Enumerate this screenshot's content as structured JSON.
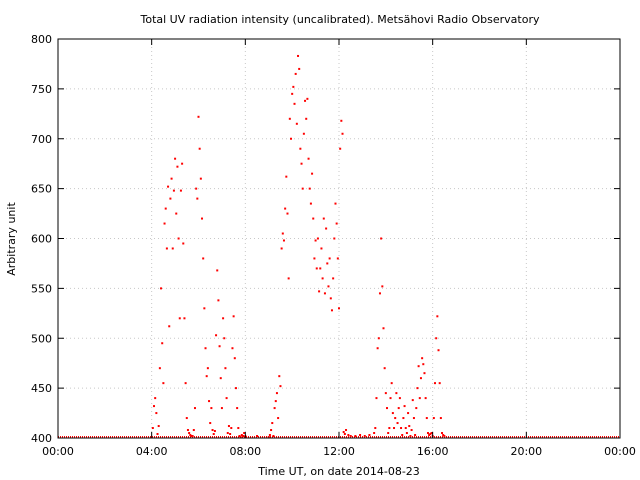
{
  "chart_data": {
    "type": "scatter",
    "title": "Total UV radiation intensity (uncalibrated). Metsähovi Radio Observatory",
    "xlabel": "Time UT, on date 2014-08-23",
    "ylabel": "Arbitrary unit",
    "xlim": [
      0,
      24
    ],
    "ylim": [
      400,
      800
    ],
    "x_ticks": [
      {
        "value": 0,
        "label": "00:00"
      },
      {
        "value": 4,
        "label": "04:00"
      },
      {
        "value": 8,
        "label": "08:00"
      },
      {
        "value": 12,
        "label": "12:00"
      },
      {
        "value": 16,
        "label": "16:00"
      },
      {
        "value": 20,
        "label": "20:00"
      },
      {
        "value": 24,
        "label": "00:00"
      }
    ],
    "y_ticks": [
      {
        "value": 400,
        "label": "400"
      },
      {
        "value": 450,
        "label": "450"
      },
      {
        "value": 500,
        "label": "500"
      },
      {
        "value": 550,
        "label": "550"
      },
      {
        "value": 600,
        "label": "600"
      },
      {
        "value": 650,
        "label": "650"
      },
      {
        "value": 700,
        "label": "700"
      },
      {
        "value": 750,
        "label": "750"
      },
      {
        "value": 800,
        "label": "800"
      }
    ],
    "grid": true,
    "point_color": "#ff0000",
    "baseline": {
      "value": 401,
      "x_start": 0,
      "x_end": 24
    },
    "x_unit": "hours UT",
    "points": [
      [
        4.05,
        410
      ],
      [
        4.1,
        432
      ],
      [
        4.15,
        440
      ],
      [
        4.2,
        425
      ],
      [
        4.25,
        404
      ],
      [
        4.3,
        412
      ],
      [
        4.35,
        470
      ],
      [
        4.4,
        550
      ],
      [
        4.45,
        495
      ],
      [
        4.5,
        455
      ],
      [
        4.55,
        615
      ],
      [
        4.6,
        630
      ],
      [
        4.65,
        590
      ],
      [
        4.7,
        652
      ],
      [
        4.75,
        512
      ],
      [
        4.8,
        640
      ],
      [
        4.85,
        660
      ],
      [
        4.9,
        590
      ],
      [
        4.95,
        648
      ],
      [
        5.0,
        680
      ],
      [
        5.05,
        625
      ],
      [
        5.1,
        672
      ],
      [
        5.15,
        600
      ],
      [
        5.2,
        520
      ],
      [
        5.25,
        648
      ],
      [
        5.3,
        675
      ],
      [
        5.35,
        595
      ],
      [
        5.4,
        520
      ],
      [
        5.45,
        455
      ],
      [
        5.5,
        420
      ],
      [
        5.55,
        408
      ],
      [
        5.6,
        405
      ],
      [
        5.65,
        403
      ],
      [
        5.7,
        402
      ],
      [
        5.75,
        402
      ],
      [
        5.8,
        408
      ],
      [
        5.85,
        430
      ],
      [
        5.9,
        650
      ],
      [
        5.95,
        640
      ],
      [
        6.0,
        722
      ],
      [
        6.05,
        690
      ],
      [
        6.1,
        660
      ],
      [
        6.15,
        620
      ],
      [
        6.2,
        580
      ],
      [
        6.25,
        530
      ],
      [
        6.3,
        490
      ],
      [
        6.35,
        462
      ],
      [
        6.4,
        470
      ],
      [
        6.45,
        437
      ],
      [
        6.5,
        415
      ],
      [
        6.55,
        430
      ],
      [
        6.6,
        408
      ],
      [
        6.65,
        404
      ],
      [
        6.7,
        407
      ],
      [
        6.75,
        503
      ],
      [
        6.8,
        568
      ],
      [
        6.85,
        538
      ],
      [
        6.9,
        492
      ],
      [
        6.95,
        460
      ],
      [
        7.0,
        430
      ],
      [
        7.05,
        520
      ],
      [
        7.1,
        500
      ],
      [
        7.15,
        470
      ],
      [
        7.2,
        440
      ],
      [
        7.25,
        405
      ],
      [
        7.3,
        412
      ],
      [
        7.35,
        404
      ],
      [
        7.4,
        410
      ],
      [
        7.45,
        490
      ],
      [
        7.5,
        522
      ],
      [
        7.55,
        480
      ],
      [
        7.6,
        450
      ],
      [
        7.65,
        430
      ],
      [
        7.7,
        410
      ],
      [
        7.75,
        402
      ],
      [
        7.8,
        401
      ],
      [
        7.85,
        403
      ],
      [
        7.9,
        402
      ],
      [
        7.95,
        405
      ],
      [
        8.0,
        402
      ],
      [
        8.5,
        402
      ],
      [
        9.0,
        401
      ],
      [
        9.05,
        403
      ],
      [
        9.1,
        408
      ],
      [
        9.15,
        415
      ],
      [
        9.2,
        402
      ],
      [
        9.25,
        430
      ],
      [
        9.3,
        437
      ],
      [
        9.35,
        445
      ],
      [
        9.4,
        420
      ],
      [
        9.45,
        462
      ],
      [
        9.5,
        452
      ],
      [
        9.55,
        590
      ],
      [
        9.6,
        605
      ],
      [
        9.65,
        598
      ],
      [
        9.7,
        630
      ],
      [
        9.75,
        662
      ],
      [
        9.8,
        625
      ],
      [
        9.85,
        560
      ],
      [
        9.9,
        720
      ],
      [
        9.95,
        700
      ],
      [
        10.0,
        745
      ],
      [
        10.05,
        752
      ],
      [
        10.1,
        735
      ],
      [
        10.15,
        765
      ],
      [
        10.2,
        715
      ],
      [
        10.25,
        783
      ],
      [
        10.3,
        770
      ],
      [
        10.35,
        690
      ],
      [
        10.4,
        675
      ],
      [
        10.45,
        650
      ],
      [
        10.5,
        705
      ],
      [
        10.55,
        738
      ],
      [
        10.6,
        720
      ],
      [
        10.65,
        740
      ],
      [
        10.7,
        680
      ],
      [
        10.75,
        650
      ],
      [
        10.8,
        635
      ],
      [
        10.85,
        665
      ],
      [
        10.9,
        620
      ],
      [
        10.95,
        580
      ],
      [
        11.0,
        598
      ],
      [
        11.05,
        570
      ],
      [
        11.1,
        600
      ],
      [
        11.15,
        547
      ],
      [
        11.2,
        570
      ],
      [
        11.25,
        590
      ],
      [
        11.3,
        560
      ],
      [
        11.35,
        620
      ],
      [
        11.4,
        545
      ],
      [
        11.45,
        610
      ],
      [
        11.5,
        575
      ],
      [
        11.55,
        552
      ],
      [
        11.6,
        580
      ],
      [
        11.65,
        540
      ],
      [
        11.7,
        528
      ],
      [
        11.75,
        560
      ],
      [
        11.8,
        600
      ],
      [
        11.85,
        635
      ],
      [
        11.9,
        615
      ],
      [
        11.95,
        580
      ],
      [
        12.0,
        530
      ],
      [
        12.05,
        690
      ],
      [
        12.1,
        718
      ],
      [
        12.15,
        705
      ],
      [
        12.2,
        406
      ],
      [
        12.25,
        404
      ],
      [
        12.3,
        408
      ],
      [
        12.4,
        403
      ],
      [
        12.5,
        402
      ],
      [
        12.7,
        402
      ],
      [
        12.9,
        403
      ],
      [
        13.1,
        402
      ],
      [
        13.3,
        403
      ],
      [
        13.5,
        405
      ],
      [
        13.55,
        410
      ],
      [
        13.6,
        440
      ],
      [
        13.65,
        490
      ],
      [
        13.7,
        500
      ],
      [
        13.75,
        545
      ],
      [
        13.8,
        600
      ],
      [
        13.85,
        552
      ],
      [
        13.9,
        510
      ],
      [
        13.95,
        470
      ],
      [
        14.0,
        445
      ],
      [
        14.05,
        430
      ],
      [
        14.1,
        405
      ],
      [
        14.15,
        410
      ],
      [
        14.2,
        440
      ],
      [
        14.25,
        455
      ],
      [
        14.3,
        425
      ],
      [
        14.35,
        410
      ],
      [
        14.4,
        420
      ],
      [
        14.45,
        445
      ],
      [
        14.5,
        415
      ],
      [
        14.55,
        430
      ],
      [
        14.6,
        440
      ],
      [
        14.65,
        410
      ],
      [
        14.7,
        403
      ],
      [
        14.75,
        420
      ],
      [
        14.8,
        432
      ],
      [
        14.85,
        410
      ],
      [
        14.9,
        405
      ],
      [
        14.95,
        425
      ],
      [
        15.0,
        412
      ],
      [
        15.05,
        402
      ],
      [
        15.1,
        408
      ],
      [
        15.15,
        438
      ],
      [
        15.2,
        420
      ],
      [
        15.25,
        403
      ],
      [
        15.3,
        430
      ],
      [
        15.35,
        450
      ],
      [
        15.4,
        472
      ],
      [
        15.45,
        440
      ],
      [
        15.5,
        460
      ],
      [
        15.55,
        480
      ],
      [
        15.6,
        474
      ],
      [
        15.65,
        465
      ],
      [
        15.7,
        440
      ],
      [
        15.75,
        420
      ],
      [
        15.8,
        405
      ],
      [
        15.85,
        403
      ],
      [
        15.9,
        404
      ],
      [
        15.95,
        405
      ],
      [
        16.0,
        402
      ],
      [
        16.05,
        420
      ],
      [
        16.1,
        455
      ],
      [
        16.15,
        500
      ],
      [
        16.2,
        522
      ],
      [
        16.25,
        488
      ],
      [
        16.3,
        455
      ],
      [
        16.35,
        420
      ],
      [
        16.4,
        405
      ],
      [
        16.45,
        403
      ],
      [
        16.5,
        402
      ]
    ]
  }
}
